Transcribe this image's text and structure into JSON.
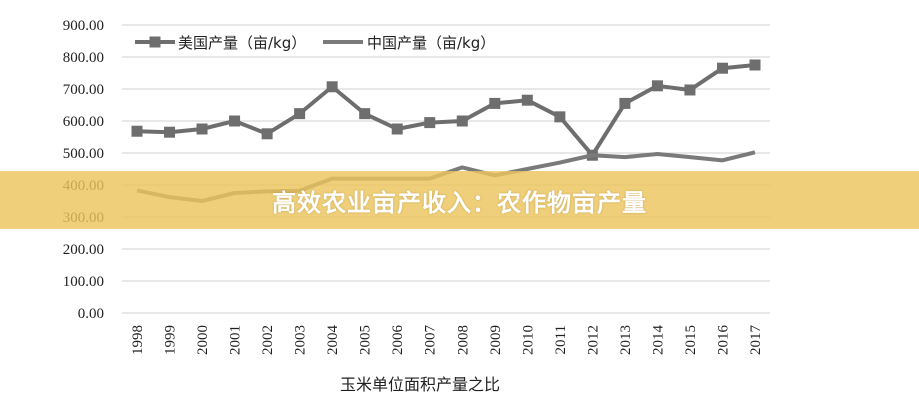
{
  "chart_data": {
    "type": "line",
    "title": "",
    "xlabel": "玉米单位面积产量之比",
    "ylabel": "",
    "x": [
      "1998",
      "1999",
      "2000",
      "2001",
      "2002",
      "2003",
      "2004",
      "2005",
      "2006",
      "2007",
      "2008",
      "2009",
      "2010",
      "2011",
      "2012",
      "2013",
      "2014",
      "2015",
      "2016",
      "2017"
    ],
    "ylim": [
      0,
      900
    ],
    "yticks": [
      "0.00",
      "100.00",
      "200.00",
      "300.00",
      "400.00",
      "500.00",
      "600.00",
      "700.00",
      "800.00",
      "900.00"
    ],
    "grid": true,
    "legend_position": "top-left",
    "series": [
      {
        "name": "美国产量（亩/kg）",
        "color": "#6e6e6e",
        "marker": "square",
        "values": [
          568,
          565,
          575,
          600,
          560,
          623,
          707,
          623,
          575,
          595,
          600,
          655,
          665,
          613,
          493,
          655,
          710,
          697,
          765,
          775
        ]
      },
      {
        "name": "中国产量（亩/kg）",
        "color": "#7a7a7a",
        "marker": "none",
        "values": [
          383,
          362,
          350,
          375,
          380,
          382,
          420,
          420,
          420,
          420,
          455,
          430,
          450,
          470,
          493,
          487,
          497,
          487,
          477,
          502
        ]
      }
    ]
  },
  "banner": {
    "text": "高效农业亩产收入：农作物亩产量"
  }
}
